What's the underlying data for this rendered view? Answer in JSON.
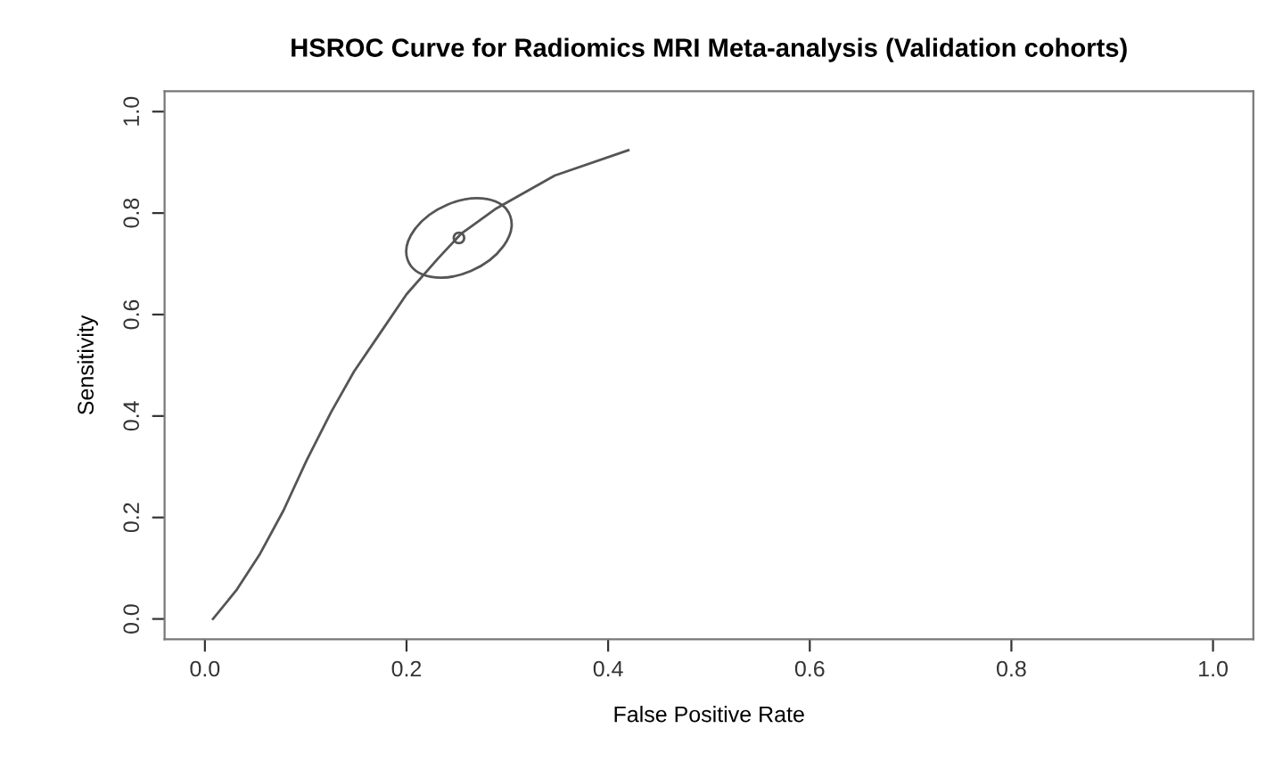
{
  "chart_data": {
    "type": "line",
    "title": "HSROC Curve for Radiomics MRI Meta-analysis (Validation cohorts)",
    "xlabel": "False Positive Rate",
    "ylabel": "Sensitivity",
    "xlim": [
      -0.04,
      1.04
    ],
    "ylim": [
      -0.04,
      1.04
    ],
    "xticks": [
      {
        "value": 0,
        "label": "0.0"
      },
      0.2,
      0.4,
      0.6,
      0.8,
      {
        "value": 1,
        "label": "1.0"
      }
    ],
    "yticks": [
      {
        "value": 0,
        "label": "0.0"
      },
      0.2,
      0.4,
      0.6,
      0.8,
      {
        "value": 1,
        "label": "1.0"
      }
    ],
    "grid": false,
    "legend": false,
    "series": [
      {
        "type": "line",
        "color": "#555555",
        "x": [
          0.008,
          0.031,
          0.054,
          0.078,
          0.101,
          0.125,
          0.148,
          0.172,
          0.2,
          0.231,
          0.254,
          0.289,
          0.347,
          0.42
        ],
        "values": [
          0.0,
          0.056,
          0.126,
          0.214,
          0.313,
          0.407,
          0.488,
          0.558,
          0.64,
          0.71,
          0.759,
          0.809,
          0.874,
          0.924
        ]
      },
      {
        "type": "scatter",
        "marker": "circle",
        "color": "#555555",
        "x": [
          0.252
        ],
        "values": [
          0.751
        ]
      }
    ]
  }
}
